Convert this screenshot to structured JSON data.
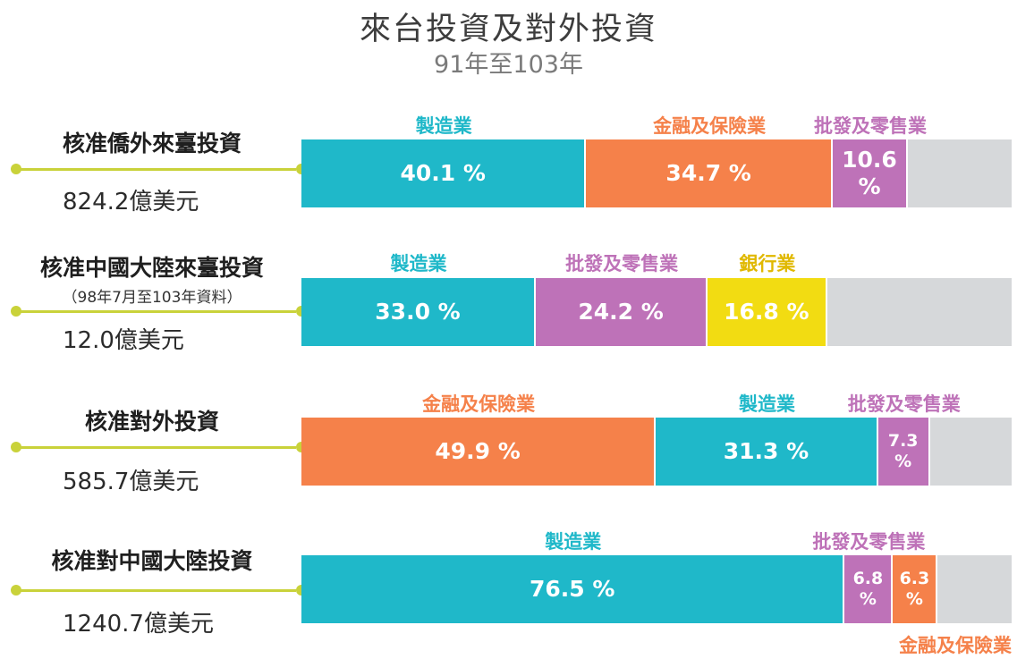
{
  "title": "來台投資及對外投資",
  "subtitle": "91年至103年",
  "colors": {
    "manufacturing": "#1fb8c9",
    "finance": "#f5814a",
    "wholesale": "#be72b8",
    "banking": "#f2dc12",
    "other": "#d6d8da",
    "connector": "#c9d23a"
  },
  "chart_data": {
    "type": "bar",
    "title": "來台投資及對外投資",
    "subtitle": "91年至103年",
    "orientation": "horizontal-stacked-100",
    "rows": [
      {
        "label": "核准僑外來臺投資",
        "note": "",
        "amount": "824.2億美元",
        "segments": [
          {
            "name": "製造業",
            "value": 40.1,
            "display": "40.1 %",
            "color": "#1fb8c9"
          },
          {
            "name": "金融及保險業",
            "value": 34.7,
            "display": "34.7 %",
            "color": "#f5814a"
          },
          {
            "name": "批發及零售業",
            "value": 10.6,
            "display": "10.6 %",
            "color": "#be72b8"
          }
        ]
      },
      {
        "label": "核准中國大陸來臺投資",
        "note": "（98年7月至103年資料）",
        "amount": "12.0億美元",
        "segments": [
          {
            "name": "製造業",
            "value": 33.0,
            "display": "33.0 %",
            "color": "#1fb8c9"
          },
          {
            "name": "批發及零售業",
            "value": 24.2,
            "display": "24.2 %",
            "color": "#be72b8"
          },
          {
            "name": "銀行業",
            "value": 16.8,
            "display": "16.8 %",
            "color": "#f2dc12"
          }
        ]
      },
      {
        "label": "核准對外投資",
        "note": "",
        "amount": "585.7億美元",
        "segments": [
          {
            "name": "金融及保險業",
            "value": 49.9,
            "display": "49.9 %",
            "color": "#f5814a"
          },
          {
            "name": "製造業",
            "value": 31.3,
            "display": "31.3 %",
            "color": "#1fb8c9"
          },
          {
            "name": "批發及零售業",
            "value": 7.3,
            "display": "7.3 %",
            "color": "#be72b8"
          }
        ]
      },
      {
        "label": "核准對中國大陸投資",
        "note": "",
        "amount": "1240.7億美元",
        "segments": [
          {
            "name": "製造業",
            "value": 76.5,
            "display": "76.5 %",
            "color": "#1fb8c9"
          },
          {
            "name": "批發及零售業",
            "value": 6.8,
            "display": "6.8 %",
            "color": "#be72b8"
          },
          {
            "name": "金融及保險業",
            "value": 6.3,
            "display": "6.3 %",
            "color": "#f5814a"
          }
        ]
      }
    ]
  }
}
